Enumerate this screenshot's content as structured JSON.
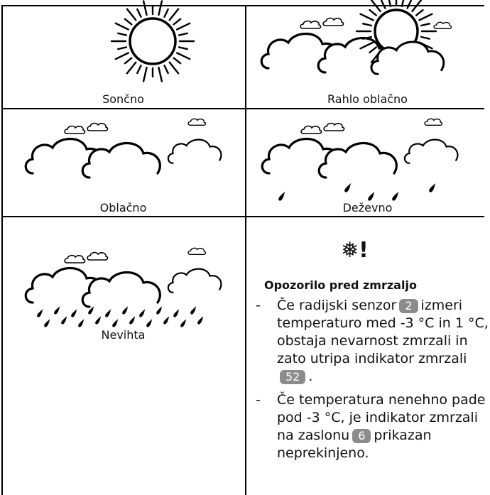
{
  "cells": [
    {
      "label": "Sončno"
    },
    {
      "label": "Rahlo oblačno"
    },
    {
      "label": "Oblačno"
    },
    {
      "label": "Deževno"
    },
    {
      "label": "Nevihta"
    }
  ],
  "frost_warning": {
    "symbol": "!",
    "title": "Opozorilo pred zmrzaljo",
    "bullets": [
      {
        "segments": [
          {
            "text": "Če radijski senzor"
          },
          {
            "badge": "2"
          },
          {
            "text": "izmeri temperaturo med -3 °C in 1 °C, obstaja nevarnost zmrzali in zato utripa indikator zmrzali"
          },
          {
            "badge": "52"
          },
          {
            "text": "."
          }
        ]
      },
      {
        "segments": [
          {
            "text": "Če temperatura nenehno pade pod -3 °C, je indikator zmrzali na zaslonu"
          },
          {
            "badge": "6"
          },
          {
            "text": "prikazan neprekinjeno."
          }
        ]
      }
    ]
  }
}
